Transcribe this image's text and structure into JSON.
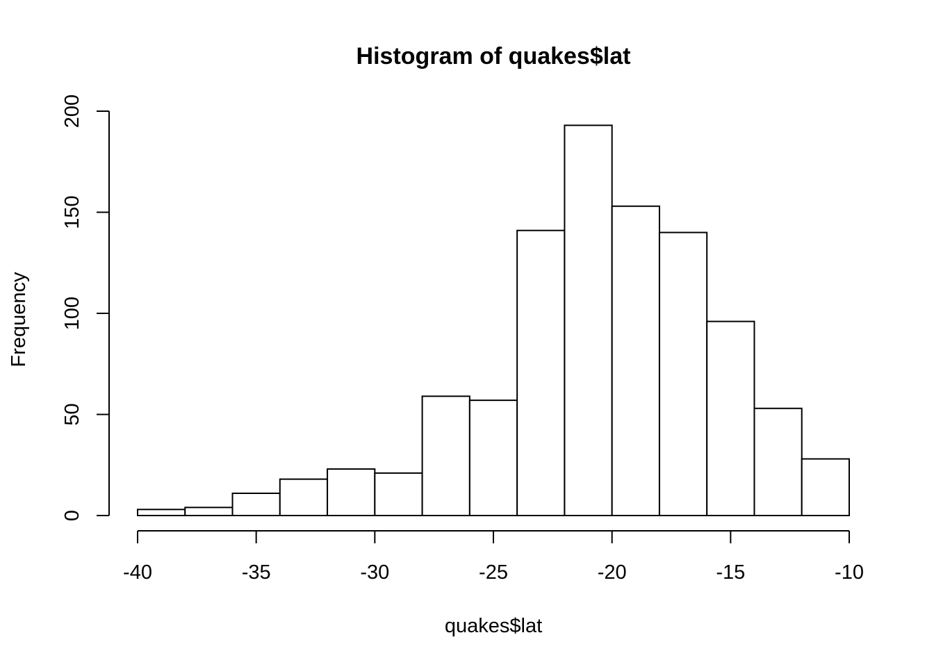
{
  "chart_data": {
    "type": "bar",
    "title": "Histogram of quakes$lat",
    "xlabel": "quakes$lat",
    "ylabel": "Frequency",
    "xlim": [
      -40,
      -10
    ],
    "ylim": [
      0,
      200
    ],
    "x_ticks": [
      -40,
      -35,
      -30,
      -25,
      -20,
      -15,
      -10
    ],
    "y_ticks": [
      0,
      50,
      100,
      150,
      200
    ],
    "bin_edges": [
      -40,
      -38,
      -36,
      -34,
      -32,
      -30,
      -28,
      -26,
      -24,
      -22,
      -20,
      -18,
      -16,
      -14,
      -12,
      -10
    ],
    "values": [
      3,
      4,
      11,
      18,
      23,
      21,
      59,
      57,
      141,
      193,
      153,
      140,
      96,
      53,
      28
    ],
    "grid": false,
    "bar_color": "#ffffff",
    "border_color": "#000000"
  }
}
